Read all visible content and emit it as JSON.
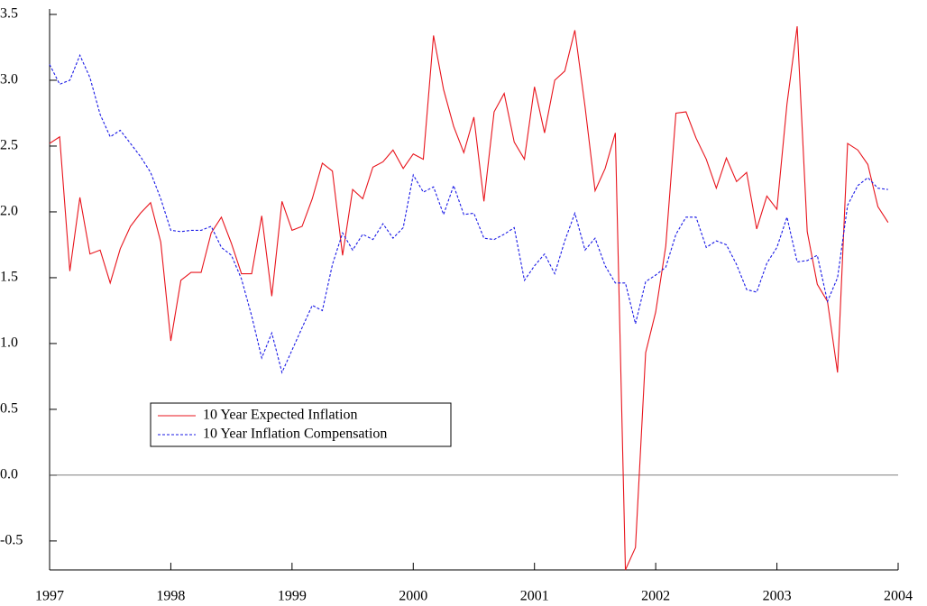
{
  "chart_data": {
    "type": "line",
    "x": [
      1997,
      1997.083,
      1997.167,
      1997.25,
      1997.333,
      1997.417,
      1997.5,
      1997.583,
      1997.667,
      1997.75,
      1997.833,
      1997.917,
      1998,
      1998.083,
      1998.167,
      1998.25,
      1998.333,
      1998.417,
      1998.5,
      1998.583,
      1998.667,
      1998.75,
      1998.833,
      1998.917,
      1999,
      1999.083,
      1999.167,
      1999.25,
      1999.333,
      1999.417,
      1999.5,
      1999.583,
      1999.667,
      1999.75,
      1999.833,
      1999.917,
      2000,
      2000.083,
      2000.167,
      2000.25,
      2000.333,
      2000.417,
      2000.5,
      2000.583,
      2000.667,
      2000.75,
      2000.833,
      2000.917,
      2001,
      2001.083,
      2001.167,
      2001.25,
      2001.333,
      2001.417,
      2001.5,
      2001.583,
      2001.667,
      2001.75,
      2001.833,
      2001.917,
      2002,
      2002.083,
      2002.167,
      2002.25,
      2002.333,
      2002.417,
      2002.5,
      2002.583,
      2002.667,
      2002.75,
      2002.833,
      2002.917,
      2003,
      2003.083,
      2003.167,
      2003.25,
      2003.333,
      2003.417,
      2003.5,
      2003.583,
      2003.667,
      2003.75,
      2003.833,
      2003.917
    ],
    "series": [
      {
        "name": "10 Year Expected Inflation",
        "color": "#e8141c",
        "dash": false,
        "values": [
          2.52,
          2.57,
          1.55,
          2.11,
          1.68,
          1.71,
          1.46,
          1.72,
          1.89,
          1.99,
          2.07,
          1.77,
          1.02,
          1.48,
          1.54,
          1.54,
          1.84,
          1.96,
          1.76,
          1.53,
          1.53,
          1.97,
          1.36,
          2.08,
          1.86,
          1.89,
          2.1,
          2.37,
          2.31,
          1.67,
          2.17,
          2.1,
          2.34,
          2.38,
          2.47,
          2.33,
          2.44,
          2.4,
          3.34,
          2.93,
          2.65,
          2.45,
          2.72,
          2.08,
          2.76,
          2.9,
          2.53,
          2.4,
          2.95,
          2.6,
          3.0,
          3.07,
          3.38,
          2.8,
          2.16,
          2.33,
          2.6,
          -0.72,
          -0.55,
          0.93,
          1.24,
          1.74,
          2.75,
          2.76,
          2.56,
          2.4,
          2.18,
          2.41,
          2.23,
          2.3,
          1.87,
          2.12,
          2.02,
          2.82,
          3.41,
          1.85,
          1.45,
          1.32,
          0.78,
          2.52,
          2.47,
          2.36,
          2.04,
          1.92
        ]
      },
      {
        "name": "10 Year Inflation Compensation",
        "color": "#1a1ae6",
        "dash": true,
        "values": [
          3.12,
          2.97,
          3.0,
          3.19,
          3.02,
          2.74,
          2.57,
          2.62,
          2.52,
          2.42,
          2.3,
          2.1,
          1.86,
          1.85,
          1.86,
          1.86,
          1.89,
          1.73,
          1.67,
          1.49,
          1.21,
          0.89,
          1.08,
          0.78,
          0.95,
          1.12,
          1.29,
          1.25,
          1.6,
          1.84,
          1.71,
          1.83,
          1.79,
          1.91,
          1.8,
          1.88,
          2.28,
          2.15,
          2.19,
          1.98,
          2.2,
          1.98,
          1.99,
          1.8,
          1.79,
          1.83,
          1.88,
          1.48,
          1.59,
          1.68,
          1.53,
          1.78,
          1.99,
          1.71,
          1.8,
          1.59,
          1.46,
          1.46,
          1.15,
          1.47,
          1.52,
          1.58,
          1.83,
          1.96,
          1.96,
          1.73,
          1.78,
          1.75,
          1.6,
          1.41,
          1.39,
          1.61,
          1.73,
          1.96,
          1.62,
          1.63,
          1.67,
          1.32,
          1.5,
          2.05,
          2.2,
          2.26,
          2.18,
          2.17
        ]
      }
    ],
    "xlim": [
      1997,
      2004
    ],
    "xticks": [
      1997,
      1998,
      1999,
      2000,
      2001,
      2002,
      2003,
      2004
    ],
    "ylim": [
      -0.72,
      3.5
    ],
    "yticks": [
      -0.5,
      {
        "value": 0,
        "label": "0.0"
      },
      0.5,
      {
        "value": 1,
        "label": "1.0"
      },
      1.5,
      {
        "value": 2,
        "label": "2.0"
      },
      2.5,
      {
        "value": 3,
        "label": "3.0"
      },
      3.5
    ],
    "zero_line": true,
    "grid": false,
    "legend_position": "center-left"
  }
}
